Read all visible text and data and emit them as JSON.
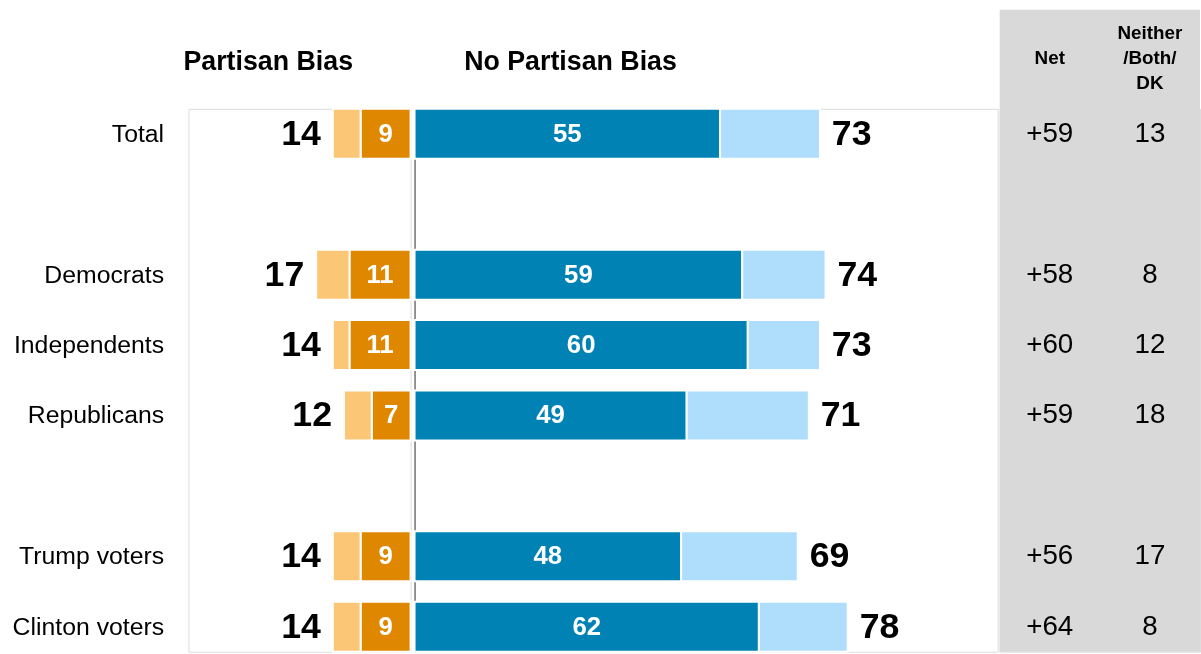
{
  "chart_data": [
    {
      "type": "bar",
      "orientation": "horizontal",
      "stacked": true,
      "tick_labels": "y",
      "title": "Partisan Bias",
      "xlim": [
        40,
        0
      ],
      "categories": [
        "Total",
        null,
        "Democrats",
        "Independents",
        "Republicans",
        null,
        "Trump voters",
        "Clinton voters"
      ],
      "series": [
        {
          "color": "#e08700",
          "values": [
            9,
            null,
            11,
            11,
            7,
            null,
            9,
            9
          ],
          "value_labels": [
            "9",
            null,
            "11",
            "11",
            "7",
            null,
            "9",
            "9"
          ]
        },
        {
          "color": "#fcc677",
          "values": [
            5,
            null,
            6,
            3,
            5,
            null,
            5,
            5
          ]
        }
      ],
      "totals": [
        "14",
        null,
        "17",
        "14",
        "12",
        null,
        "14",
        "14"
      ]
    },
    {
      "type": "bar",
      "orientation": "horizontal",
      "stacked": true,
      "tick_labels": false,
      "title": "No Partisan Bias",
      "xlim": [
        0,
        105
      ],
      "categories": [
        null,
        null,
        null,
        null,
        null,
        null,
        null,
        null
      ],
      "series": [
        {
          "color": "#0083b4",
          "values": [
            55,
            null,
            59,
            60,
            49,
            null,
            48,
            62
          ],
          "value_labels": [
            "55",
            null,
            "59",
            "60",
            "49",
            null,
            "48",
            "62"
          ]
        },
        {
          "color": "#afdefc",
          "values": [
            18,
            null,
            15,
            13,
            22,
            null,
            21,
            16
          ]
        }
      ],
      "totals": [
        "73",
        null,
        "74",
        "73",
        "71",
        null,
        "69",
        "78"
      ]
    },
    {
      "type": "other",
      "annotations": [
        "Net",
        "Neither /Both/ DK",
        "+59",
        "13",
        "+58",
        "8",
        "+60",
        "12",
        "+59",
        "18",
        "+56",
        "17",
        "+64",
        "8"
      ]
    }
  ]
}
